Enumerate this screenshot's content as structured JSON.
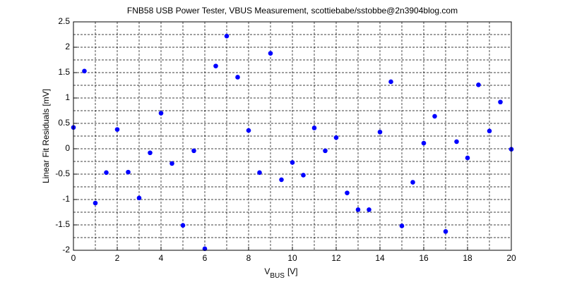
{
  "chart_data": {
    "type": "scatter",
    "title": "FNB58 USB Power Tester, VBUS Measurement, scottiebabe/sstobbe@2n3904blog.com",
    "xlabel": {
      "main": "V",
      "subscript": "BUS",
      "unit": "[V]"
    },
    "ylabel": "Linear Fit Residuals [mV]",
    "color": "#0000ff",
    "grid": true,
    "x": [
      0,
      0.5,
      1,
      1.5,
      2,
      2.5,
      3,
      3.5,
      4,
      4.5,
      5,
      5.5,
      6,
      6.5,
      7,
      7.5,
      8,
      8.5,
      9,
      9.5,
      10,
      10.5,
      11,
      11.5,
      12,
      12.5,
      13,
      13.5,
      14,
      14.5,
      15,
      15.5,
      16,
      16.5,
      17,
      17.5,
      18,
      18.5,
      19,
      19.5,
      20
    ],
    "values": [
      0.42,
      1.53,
      -1.07,
      -0.47,
      0.38,
      -0.46,
      -0.97,
      -0.08,
      0.7,
      -0.29,
      -1.51,
      -0.04,
      -1.97,
      1.63,
      2.22,
      1.41,
      0.36,
      -0.47,
      1.88,
      -0.61,
      -0.27,
      -0.52,
      0.41,
      -0.04,
      0.22,
      -0.87,
      -1.2,
      -1.2,
      0.33,
      1.32,
      -1.52,
      -0.66,
      0.11,
      0.64,
      -1.63,
      0.14,
      -0.18,
      1.26,
      0.35,
      0.92,
      -0.01
    ],
    "xlim": [
      0,
      20
    ],
    "ylim": [
      -2,
      2.5
    ],
    "xticks": [
      0,
      2,
      4,
      6,
      8,
      10,
      12,
      14,
      16,
      18,
      20
    ],
    "yticks": [
      -2,
      -1.5,
      -1,
      -0.5,
      0,
      0.5,
      1,
      1.5,
      2,
      2.5
    ],
    "xminor": [
      1,
      3,
      5,
      7,
      9,
      11,
      13,
      15,
      17,
      19
    ],
    "yminor": [
      -1.75,
      -1.25,
      -0.75,
      -0.25,
      0.25,
      0.75,
      1.25,
      1.75,
      2.25
    ]
  }
}
